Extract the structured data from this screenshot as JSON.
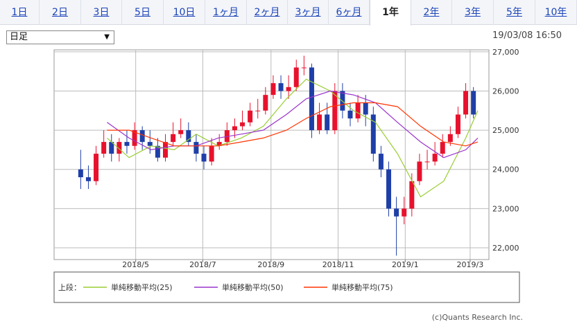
{
  "tabs": [
    {
      "label": "1日",
      "active": false
    },
    {
      "label": "2日",
      "active": false
    },
    {
      "label": "3日",
      "active": false
    },
    {
      "label": "5日",
      "active": false
    },
    {
      "label": "10日",
      "active": false
    },
    {
      "label": "1ヶ月",
      "active": false
    },
    {
      "label": "2ヶ月",
      "active": false
    },
    {
      "label": "3ヶ月",
      "active": false
    },
    {
      "label": "6ヶ月",
      "active": false
    },
    {
      "label": "1年",
      "active": true
    },
    {
      "label": "2年",
      "active": false
    },
    {
      "label": "3年",
      "active": false
    },
    {
      "label": "5年",
      "active": false
    },
    {
      "label": "10年",
      "active": false
    }
  ],
  "select": {
    "value": "日足"
  },
  "timestamp": "19/03/08 16:50",
  "copyright": "(c)Quants Research Inc.",
  "chart_data": {
    "type": "line",
    "x_start": "2018-03-08",
    "x_end": "2019-03-08",
    "x_ticks": [
      {
        "label": "2018/5",
        "date": "2018-05-01"
      },
      {
        "label": "2018/7",
        "date": "2018-07-01"
      },
      {
        "label": "2018/9",
        "date": "2018-09-01"
      },
      {
        "label": "2018/11",
        "date": "2018-11-01"
      },
      {
        "label": "2019/1",
        "date": "2019-01-01"
      },
      {
        "label": "2019/3",
        "date": "2019-03-01"
      }
    ],
    "ylim": [
      21700,
      27050
    ],
    "y_ticks": [
      {
        "label": "22,000",
        "value": 22000
      },
      {
        "label": "23,000",
        "value": 23000
      },
      {
        "label": "24,000",
        "value": 24000
      },
      {
        "label": "25,000",
        "value": 25000
      },
      {
        "label": "26,000",
        "value": 26000
      },
      {
        "label": "27,000",
        "value": 27000
      }
    ],
    "grid": true,
    "legend_label": "上段：",
    "candles": {
      "dates": [
        "2018-03-12",
        "2018-03-19",
        "2018-03-26",
        "2018-04-02",
        "2018-04-09",
        "2018-04-16",
        "2018-04-23",
        "2018-04-30",
        "2018-05-07",
        "2018-05-14",
        "2018-05-21",
        "2018-05-28",
        "2018-06-04",
        "2018-06-11",
        "2018-06-18",
        "2018-06-25",
        "2018-07-02",
        "2018-07-09",
        "2018-07-16",
        "2018-07-23",
        "2018-07-30",
        "2018-08-06",
        "2018-08-13",
        "2018-08-20",
        "2018-08-27",
        "2018-09-03",
        "2018-09-10",
        "2018-09-17",
        "2018-09-24",
        "2018-10-01",
        "2018-10-08",
        "2018-10-15",
        "2018-10-22",
        "2018-10-29",
        "2018-11-05",
        "2018-11-12",
        "2018-11-19",
        "2018-11-26",
        "2018-12-03",
        "2018-12-10",
        "2018-12-17",
        "2018-12-24",
        "2018-12-31",
        "2019-01-07",
        "2019-01-14",
        "2019-01-21",
        "2019-01-28",
        "2019-02-04",
        "2019-02-11",
        "2019-02-18",
        "2019-02-25",
        "2019-03-04"
      ],
      "open": [
        24000,
        23800,
        23700,
        24400,
        24700,
        24400,
        24700,
        24600,
        25000,
        24700,
        24600,
        24300,
        24700,
        24900,
        25000,
        24700,
        24400,
        24200,
        24600,
        24700,
        25000,
        25100,
        25200,
        25500,
        25500,
        25900,
        26200,
        26000,
        26100,
        26600,
        26600,
        25000,
        25400,
        25000,
        26000,
        25500,
        25300,
        25700,
        25400,
        24400,
        24000,
        23000,
        22800,
        23000,
        23700,
        24200,
        24200,
        24400,
        24700,
        24900,
        25400,
        26000
      ],
      "close": [
        23800,
        23700,
        24400,
        24700,
        24400,
        24700,
        24600,
        25000,
        24700,
        24600,
        24300,
        24700,
        24900,
        25000,
        24700,
        24400,
        24200,
        24600,
        24700,
        25000,
        25100,
        25200,
        25500,
        25500,
        25900,
        26200,
        26000,
        26100,
        26600,
        26600,
        25000,
        25400,
        25000,
        26000,
        25500,
        25300,
        25700,
        25400,
        24400,
        24000,
        23000,
        22800,
        23000,
        23700,
        24200,
        24200,
        24400,
        24700,
        24900,
        25400,
        26000,
        25400
      ],
      "high": [
        24500,
        24100,
        24600,
        25000,
        24900,
        24800,
        25000,
        25200,
        25100,
        25000,
        24800,
        24900,
        25200,
        25300,
        25200,
        24900,
        24600,
        24800,
        24900,
        25200,
        25300,
        25500,
        25700,
        25800,
        26100,
        26400,
        26400,
        26400,
        26800,
        26900,
        26700,
        25700,
        25700,
        26200,
        26200,
        25700,
        25900,
        25900,
        25600,
        24600,
        24200,
        23300,
        23300,
        23900,
        24400,
        24500,
        24700,
        24900,
        25100,
        25600,
        26200,
        26100
      ],
      "low": [
        23500,
        23500,
        23600,
        24300,
        24200,
        24200,
        24400,
        24500,
        24500,
        24400,
        24200,
        24200,
        24600,
        24800,
        24600,
        24200,
        24000,
        24100,
        24500,
        24600,
        24800,
        25000,
        25100,
        25300,
        25400,
        25800,
        25800,
        25800,
        26000,
        26400,
        24800,
        24900,
        24900,
        24900,
        25300,
        25100,
        25200,
        25100,
        24200,
        23800,
        22800,
        21800,
        22600,
        22800,
        23600,
        24000,
        24100,
        24300,
        24600,
        24800,
        25300,
        25300
      ]
    },
    "series": [
      {
        "name": "単純移動平均(25)",
        "color": "#9acd32",
        "x": [
          "2018-04-05",
          "2018-04-25",
          "2018-05-15",
          "2018-06-05",
          "2018-06-25",
          "2018-07-15",
          "2018-08-05",
          "2018-08-25",
          "2018-09-15",
          "2018-10-03",
          "2018-10-25",
          "2018-11-15",
          "2018-12-05",
          "2018-12-25",
          "2019-01-15",
          "2019-02-05",
          "2019-02-25",
          "2019-03-08"
        ],
        "values": [
          24800,
          24300,
          24600,
          24500,
          24900,
          24600,
          24800,
          25100,
          25800,
          26300,
          26000,
          25500,
          25200,
          24400,
          23300,
          23700,
          24800,
          25500
        ]
      },
      {
        "name": "単純移動平均(50)",
        "color": "#9933cc",
        "x": [
          "2018-04-05",
          "2018-04-25",
          "2018-05-15",
          "2018-06-05",
          "2018-06-25",
          "2018-07-15",
          "2018-08-05",
          "2018-08-25",
          "2018-09-15",
          "2018-10-03",
          "2018-10-25",
          "2018-11-15",
          "2018-12-05",
          "2018-12-25",
          "2019-01-15",
          "2019-02-05",
          "2019-02-25",
          "2019-03-08"
        ],
        "values": [
          25200,
          24800,
          24500,
          24600,
          24600,
          24800,
          24900,
          25000,
          25400,
          25800,
          26000,
          25900,
          25700,
          25200,
          24700,
          24300,
          24500,
          24800
        ]
      },
      {
        "name": "単純移動平均(75)",
        "color": "#ff3300",
        "x": [
          "2018-04-05",
          "2018-04-25",
          "2018-05-15",
          "2018-06-05",
          "2018-06-25",
          "2018-07-15",
          "2018-08-05",
          "2018-08-25",
          "2018-09-15",
          "2018-10-03",
          "2018-10-25",
          "2018-11-15",
          "2018-12-05",
          "2018-12-25",
          "2019-01-15",
          "2019-02-05",
          "2019-02-25",
          "2019-03-08"
        ],
        "values": [
          25000,
          25000,
          24800,
          24600,
          24600,
          24600,
          24700,
          24800,
          25000,
          25300,
          25600,
          25700,
          25700,
          25600,
          25100,
          24700,
          24600,
          24700
        ]
      }
    ]
  }
}
